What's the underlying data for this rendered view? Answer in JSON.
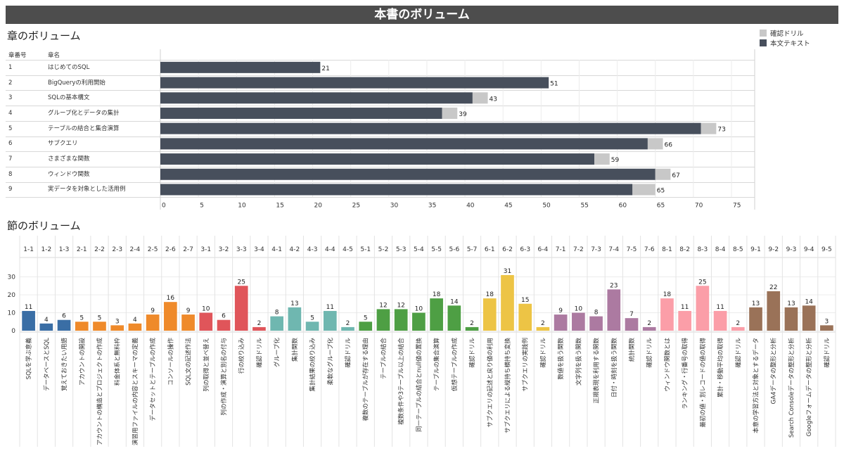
{
  "header": {
    "title": "本書のボリューム"
  },
  "chapters": {
    "title": "章のボリューム",
    "col_no": "章番号",
    "col_name": "章名",
    "legend": [
      {
        "label": "確認ドリル",
        "color": "#c8c8c8"
      },
      {
        "label": "本文テキスト",
        "color": "#474f5c"
      }
    ]
  },
  "sections": {
    "title": "節のボリューム"
  },
  "chart_data": [
    {
      "type": "bar",
      "orientation": "horizontal",
      "stacked": true,
      "categories": [
        "はじめてのSQL",
        "BigQueryの利用開始",
        "SQLの基本構文",
        "グループ化とデータの集計",
        "テーブルの結合と集合演算",
        "サブクエリ",
        "さまざまな関数",
        "ウィンドウ関数",
        "実データを対象とした活用例"
      ],
      "category_numbers": [
        "1",
        "2",
        "3",
        "4",
        "5",
        "6",
        "7",
        "8",
        "9"
      ],
      "series": [
        {
          "name": "本文テキスト",
          "values": [
            21,
            51,
            41,
            37,
            71,
            64,
            57,
            65,
            62
          ]
        },
        {
          "name": "確認ドリル",
          "values": [
            0,
            0,
            2,
            2,
            2,
            2,
            2,
            2,
            3
          ]
        }
      ],
      "totals": [
        21,
        51,
        43,
        39,
        73,
        66,
        59,
        67,
        65
      ],
      "xlim": [
        0,
        76
      ],
      "xticks": [
        0,
        5,
        10,
        15,
        20,
        25,
        30,
        35,
        40,
        45,
        50,
        55,
        60,
        65,
        70,
        75
      ]
    },
    {
      "type": "bar",
      "yticks": [
        0,
        10,
        20,
        30
      ],
      "ylim": [
        0,
        33
      ],
      "categories": [
        "1-1",
        "1-2",
        "1-3",
        "2-1",
        "2-2",
        "2-3",
        "2-4",
        "2-5",
        "2-6",
        "2-7",
        "3-1",
        "3-2",
        "3-3",
        "3-4",
        "4-1",
        "4-2",
        "4-3",
        "4-4",
        "4-5",
        "5-1",
        "5-2",
        "5-3",
        "5-4",
        "5-5",
        "5-6",
        "5-7",
        "6-1",
        "6-2",
        "6-3",
        "6-4",
        "7-1",
        "7-2",
        "7-3",
        "7-4",
        "7-5",
        "7-6",
        "8-1",
        "8-2",
        "8-3",
        "8-4",
        "8-5",
        "9-1",
        "9-2",
        "9-3",
        "9-4",
        "9-5"
      ],
      "labels": [
        "SQLを学ぶ意義",
        "データベースとSQL",
        "覚えておきたい用語",
        "アカウントの開設",
        "アカウントの構造とプロジェクトの作成",
        "料金体系と無料枠",
        "演習用ファイルの内容とスキーマの定義",
        "データセットとテーブルの作成",
        "コンソールの操作",
        "SQL文の記述作法",
        "列の取得と並べ替え",
        "列の作成・演算と別名の付与",
        "行の絞り込み",
        "確認ドリル",
        "グループ化",
        "集計関数",
        "集計結果の絞り込み",
        "柔軟なグループ化",
        "確認ドリル",
        "複数のテーブルが存在する理由",
        "テーブルの結合",
        "複数条件や3テーブル以上の結合",
        "同一テーブルの結合とnull値の置換",
        "テーブルの集合演算",
        "仮想テーブルの作成",
        "確認ドリル",
        "サブクエリの記述と戻り値の利用",
        "サブクエリによる縦持ち横持ち変換",
        "サブクエリの実践例",
        "確認ドリル",
        "数値を扱う関数",
        "文字列を扱う関数",
        "正規表現を利用する関数",
        "日付・時刻を扱う関数",
        "統計関数",
        "確認ドリル",
        "ウィンドウ関数とは",
        "ランキング・行番号の取得",
        "最初の値・別レコードの値の取得",
        "累計・移動平均の取得",
        "確認ドリル",
        "本章の学習方法と対象とするデータ",
        "GA4データの整形と分析",
        "Search Consoleデータの整形と分析",
        "Googleフォームデータの整形と分析",
        "確認ドリル"
      ],
      "values": [
        11,
        4,
        6,
        5,
        5,
        3,
        4,
        9,
        16,
        9,
        10,
        6,
        25,
        2,
        8,
        13,
        5,
        11,
        2,
        5,
        12,
        12,
        10,
        18,
        14,
        2,
        18,
        31,
        15,
        2,
        9,
        10,
        8,
        23,
        7,
        2,
        18,
        11,
        25,
        11,
        2,
        13,
        22,
        13,
        14,
        3
      ],
      "chapter_colors": {
        "1": "#3a6ea5",
        "2": "#ef8a2a",
        "3": "#e0555a",
        "4": "#6fb7b0",
        "5": "#4e9f44",
        "6": "#edc445",
        "7": "#ac7aa1",
        "8": "#fb9ea8",
        "9": "#9a7258"
      }
    }
  ]
}
